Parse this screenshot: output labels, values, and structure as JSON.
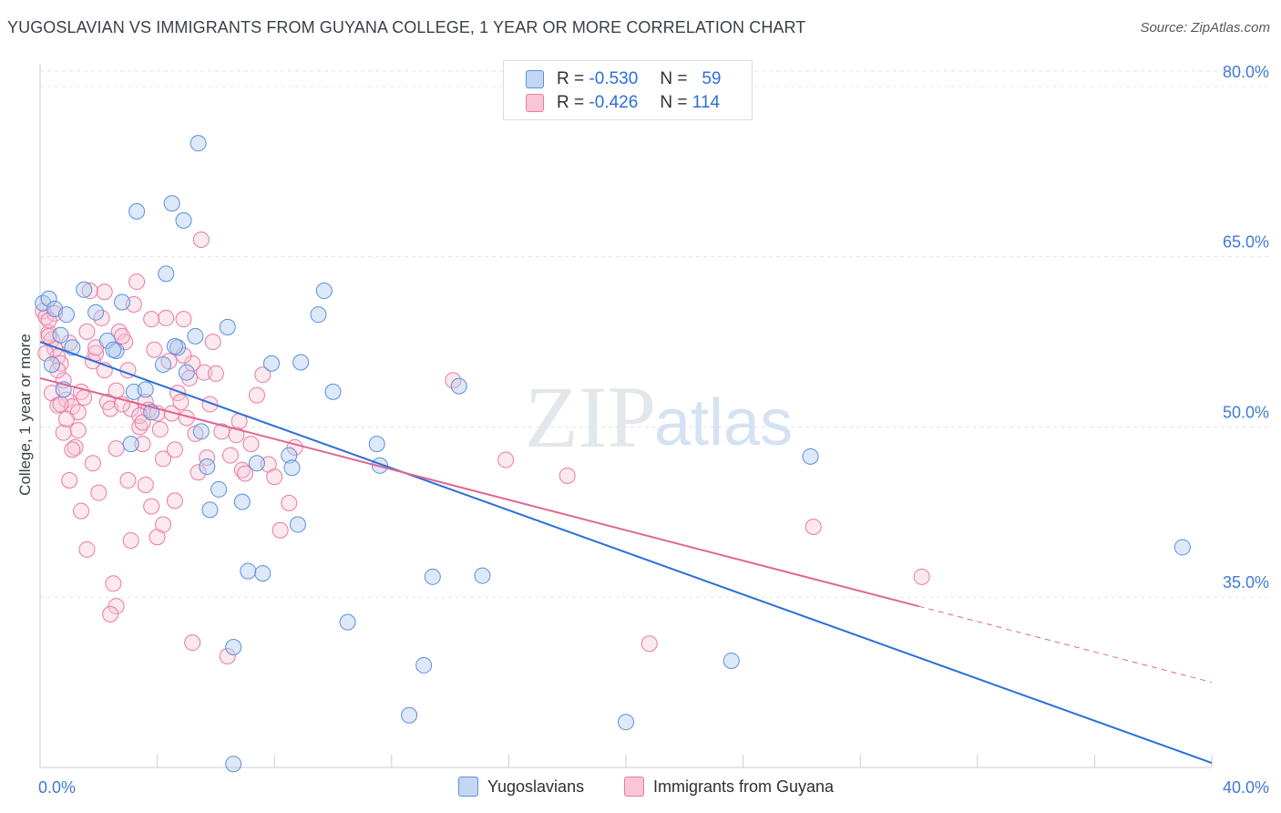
{
  "title": "YUGOSLAVIAN VS IMMIGRANTS FROM GUYANA COLLEGE, 1 YEAR OR MORE CORRELATION CHART",
  "source": "Source: ZipAtlas.com",
  "watermark": {
    "zip": "ZIP",
    "atlas": "atlas"
  },
  "legend": {
    "r_label": "R =",
    "n_label": "N =",
    "series1": {
      "r": "-0.530",
      "n": "59"
    },
    "series2": {
      "r": "-0.426",
      "n": "114"
    }
  },
  "chart_data": {
    "type": "scatter",
    "ylabel": "College, 1 year or more",
    "xlim": [
      0,
      40
    ],
    "ylim": [
      20,
      82
    ],
    "x_tick_labels": [
      "0.0%",
      "40.0%"
    ],
    "y_ticks": [
      35,
      50,
      65,
      80
    ],
    "y_tick_labels": [
      "35.0%",
      "50.0%",
      "65.0%",
      "80.0%"
    ],
    "grid": true,
    "colors": {
      "series1": "#5b8fd9",
      "series2": "#e87aa0",
      "line1": "#2a6fd6",
      "line2": "#e0668f",
      "axis_text": "#3f7ad6"
    },
    "series": [
      {
        "name": "Yugoslavians",
        "points": [
          [
            0.1,
            60.9
          ],
          [
            0.3,
            61.3
          ],
          [
            0.5,
            60.4
          ],
          [
            0.7,
            58.1
          ],
          [
            0.9,
            59.9
          ],
          [
            0.4,
            55.5
          ],
          [
            1.1,
            57.0
          ],
          [
            0.8,
            53.3
          ],
          [
            1.5,
            62.1
          ],
          [
            1.9,
            60.1
          ],
          [
            2.3,
            57.6
          ],
          [
            2.6,
            56.7
          ],
          [
            2.8,
            61.0
          ],
          [
            2.5,
            56.8
          ],
          [
            3.3,
            69.0
          ],
          [
            3.2,
            53.1
          ],
          [
            3.8,
            51.3
          ],
          [
            3.1,
            48.5
          ],
          [
            4.2,
            55.5
          ],
          [
            4.3,
            63.5
          ],
          [
            4.5,
            69.7
          ],
          [
            4.9,
            68.2
          ],
          [
            5.4,
            75.0
          ],
          [
            5.3,
            58.0
          ],
          [
            4.7,
            57.0
          ],
          [
            5.0,
            54.8
          ],
          [
            5.5,
            49.6
          ],
          [
            5.7,
            46.5
          ],
          [
            6.1,
            44.5
          ],
          [
            5.8,
            42.7
          ],
          [
            6.4,
            58.8
          ],
          [
            6.9,
            43.4
          ],
          [
            7.1,
            37.3
          ],
          [
            7.6,
            37.1
          ],
          [
            7.4,
            46.8
          ],
          [
            7.9,
            55.6
          ],
          [
            8.5,
            47.5
          ],
          [
            8.6,
            46.4
          ],
          [
            8.8,
            41.4
          ],
          [
            8.9,
            55.7
          ],
          [
            9.5,
            59.9
          ],
          [
            9.7,
            62.0
          ],
          [
            10.0,
            53.1
          ],
          [
            10.5,
            32.8
          ],
          [
            11.5,
            48.5
          ],
          [
            11.6,
            46.6
          ],
          [
            12.6,
            24.6
          ],
          [
            13.1,
            29.0
          ],
          [
            13.4,
            36.8
          ],
          [
            14.3,
            53.6
          ],
          [
            15.1,
            36.9
          ],
          [
            20.0,
            24.0
          ],
          [
            23.6,
            29.4
          ],
          [
            26.3,
            47.4
          ],
          [
            39.0,
            39.4
          ],
          [
            6.6,
            30.6
          ],
          [
            6.6,
            20.3
          ],
          [
            4.6,
            57.1
          ],
          [
            3.6,
            53.3
          ]
        ]
      },
      {
        "name": "Immigrants from Guyana",
        "points": [
          [
            0.1,
            60.2
          ],
          [
            0.2,
            59.7
          ],
          [
            0.3,
            58.3
          ],
          [
            0.4,
            57.7
          ],
          [
            0.5,
            56.9
          ],
          [
            0.6,
            56.2
          ],
          [
            0.7,
            55.6
          ],
          [
            0.4,
            53.0
          ],
          [
            0.6,
            51.9
          ],
          [
            0.9,
            52.4
          ],
          [
            0.8,
            54.1
          ],
          [
            1.1,
            51.8
          ],
          [
            1.2,
            48.2
          ],
          [
            1.3,
            49.7
          ],
          [
            1.4,
            53.1
          ],
          [
            1.5,
            52.6
          ],
          [
            1.6,
            58.4
          ],
          [
            1.8,
            55.8
          ],
          [
            1.9,
            56.5
          ],
          [
            2.1,
            59.6
          ],
          [
            2.2,
            61.9
          ],
          [
            2.3,
            52.2
          ],
          [
            2.4,
            51.6
          ],
          [
            2.6,
            53.2
          ],
          [
            2.7,
            58.4
          ],
          [
            2.9,
            57.5
          ],
          [
            3.0,
            55.0
          ],
          [
            3.1,
            51.6
          ],
          [
            3.2,
            60.8
          ],
          [
            3.3,
            62.8
          ],
          [
            3.4,
            50.0
          ],
          [
            3.5,
            48.5
          ],
          [
            3.6,
            52.2
          ],
          [
            3.7,
            51.5
          ],
          [
            3.8,
            59.5
          ],
          [
            3.9,
            56.8
          ],
          [
            4.0,
            51.2
          ],
          [
            4.1,
            49.8
          ],
          [
            4.2,
            47.2
          ],
          [
            4.3,
            59.6
          ],
          [
            4.4,
            55.8
          ],
          [
            4.5,
            51.2
          ],
          [
            4.6,
            43.5
          ],
          [
            4.7,
            53.0
          ],
          [
            4.8,
            52.2
          ],
          [
            4.9,
            59.5
          ],
          [
            5.0,
            50.8
          ],
          [
            5.1,
            54.3
          ],
          [
            5.2,
            55.6
          ],
          [
            5.3,
            49.4
          ],
          [
            5.4,
            46.0
          ],
          [
            5.5,
            66.5
          ],
          [
            5.6,
            54.8
          ],
          [
            5.7,
            47.3
          ],
          [
            5.9,
            57.5
          ],
          [
            6.0,
            54.7
          ],
          [
            6.2,
            49.6
          ],
          [
            6.5,
            47.5
          ],
          [
            6.7,
            49.3
          ],
          [
            6.9,
            46.2
          ],
          [
            7.0,
            45.9
          ],
          [
            7.4,
            52.8
          ],
          [
            7.6,
            54.6
          ],
          [
            7.8,
            46.7
          ],
          [
            8.0,
            45.6
          ],
          [
            8.2,
            40.9
          ],
          [
            8.5,
            43.3
          ],
          [
            8.7,
            48.2
          ],
          [
            1.0,
            57.4
          ],
          [
            1.7,
            62.0
          ],
          [
            2.0,
            44.2
          ],
          [
            2.5,
            36.2
          ],
          [
            2.6,
            34.2
          ],
          [
            2.4,
            33.5
          ],
          [
            3.1,
            40.0
          ],
          [
            3.6,
            44.9
          ],
          [
            4.0,
            40.3
          ],
          [
            4.2,
            41.4
          ],
          [
            5.2,
            31.0
          ],
          [
            6.4,
            29.8
          ],
          [
            1.0,
            45.3
          ],
          [
            1.4,
            42.6
          ],
          [
            1.6,
            39.2
          ],
          [
            0.6,
            55.0
          ],
          [
            0.7,
            52.0
          ],
          [
            1.1,
            48.0
          ],
          [
            0.8,
            49.5
          ],
          [
            3.0,
            45.3
          ],
          [
            3.8,
            43.0
          ],
          [
            0.3,
            58.0
          ],
          [
            0.2,
            56.5
          ],
          [
            0.5,
            60.0
          ],
          [
            1.9,
            57.0
          ],
          [
            2.2,
            55.0
          ],
          [
            2.8,
            58.0
          ],
          [
            3.4,
            51.0
          ],
          [
            4.6,
            48.0
          ],
          [
            5.8,
            52.0
          ],
          [
            6.8,
            50.5
          ],
          [
            7.2,
            48.5
          ],
          [
            14.1,
            54.1
          ],
          [
            15.9,
            47.1
          ],
          [
            18.0,
            45.7
          ],
          [
            26.4,
            41.2
          ],
          [
            30.1,
            36.8
          ],
          [
            20.8,
            30.9
          ],
          [
            1.3,
            51.3
          ],
          [
            2.8,
            52.0
          ],
          [
            0.9,
            50.7
          ],
          [
            1.8,
            46.8
          ],
          [
            2.6,
            48.1
          ],
          [
            3.5,
            50.4
          ],
          [
            4.9,
            56.3
          ],
          [
            0.3,
            59.4
          ]
        ]
      }
    ],
    "trendlines": [
      {
        "series": "Yugoslavians",
        "x": [
          0,
          40
        ],
        "y": [
          57.5,
          20.4
        ],
        "style": "solid"
      },
      {
        "series": "Immigrants from Guyana",
        "x": [
          0,
          30.0
        ],
        "y": [
          54.3,
          34.2
        ],
        "style": "solid"
      },
      {
        "series": "Immigrants from Guyana",
        "x": [
          30.0,
          40
        ],
        "y": [
          34.2,
          27.5
        ],
        "style": "dashed"
      }
    ]
  }
}
